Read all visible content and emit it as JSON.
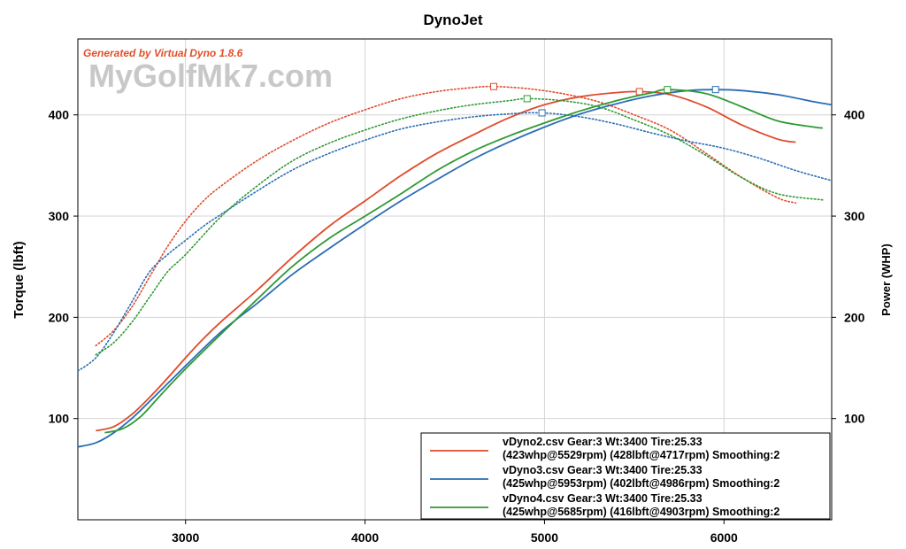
{
  "chart_data": {
    "type": "line",
    "title": "DynoJet",
    "generator_text": "Generated by Virtual Dyno 1.8.6",
    "watermark": "MyGolfMk7.com",
    "xlabel": "",
    "ylabel_left": "Torque (lbft)",
    "ylabel_right": "Power (WHP)",
    "xlim": [
      2400,
      6600
    ],
    "ylim": [
      0,
      475
    ],
    "x_ticks": [
      3000,
      4000,
      5000,
      6000
    ],
    "y_ticks": [
      100,
      200,
      300,
      400
    ],
    "grid": true,
    "legend_position": "bottom-right",
    "series": [
      {
        "name": "vDyno2.csv Gear:3 Wt:3400 Tire:25.33",
        "detail": "(423whp@5529rpm)  (428lbft@4717rpm)  Smoothing:2",
        "color": "#e04a2a",
        "power": {
          "x": [
            2500,
            2600,
            2700,
            2800,
            2900,
            3000,
            3100,
            3200,
            3400,
            3600,
            3800,
            4000,
            4200,
            4400,
            4600,
            4800,
            5000,
            5200,
            5400,
            5529,
            5700,
            5900,
            6100,
            6300,
            6400
          ],
          "y": [
            88,
            92,
            104,
            121,
            140,
            160,
            179,
            196,
            227,
            260,
            290,
            315,
            340,
            362,
            380,
            397,
            410,
            418,
            422,
            423,
            420,
            408,
            390,
            376,
            373
          ],
          "peak": [
            5529,
            423
          ]
        },
        "torque": {
          "x": [
            2500,
            2600,
            2700,
            2800,
            2900,
            3000,
            3100,
            3200,
            3400,
            3600,
            3800,
            4000,
            4200,
            4400,
            4600,
            4717,
            4900,
            5100,
            5300,
            5500,
            5700,
            5900,
            6100,
            6300,
            6400
          ],
          "y": [
            172,
            187,
            210,
            240,
            270,
            295,
            315,
            330,
            355,
            375,
            392,
            405,
            416,
            423,
            427,
            428,
            426,
            421,
            413,
            400,
            385,
            362,
            338,
            318,
            313
          ],
          "peak": [
            4717,
            428
          ]
        }
      },
      {
        "name": "vDyno3.csv Gear:3 Wt:3400 Tire:25.33",
        "detail": "(425whp@5953rpm)  (402lbft@4986rpm)  Smoothing:2",
        "color": "#2a6db5",
        "power": {
          "x": [
            2400,
            2500,
            2600,
            2700,
            2800,
            3000,
            3200,
            3400,
            3600,
            3800,
            4000,
            4200,
            4400,
            4600,
            4800,
            5000,
            5200,
            5400,
            5600,
            5800,
            5953,
            6100,
            6300,
            6500,
            6600
          ],
          "y": [
            72,
            76,
            86,
            100,
            117,
            152,
            186,
            214,
            243,
            268,
            292,
            315,
            336,
            356,
            373,
            388,
            401,
            411,
            419,
            424,
            425,
            424,
            420,
            413,
            410
          ],
          "peak": [
            5953,
            425
          ]
        },
        "torque": {
          "x": [
            2400,
            2500,
            2600,
            2700,
            2800,
            2900,
            3000,
            3100,
            3200,
            3400,
            3600,
            3800,
            4000,
            4200,
            4400,
            4600,
            4800,
            4986,
            5200,
            5400,
            5600,
            5800,
            6000,
            6200,
            6400,
            6600
          ],
          "y": [
            147,
            160,
            185,
            215,
            245,
            262,
            276,
            290,
            302,
            325,
            346,
            362,
            375,
            386,
            393,
            398,
            401,
            402,
            398,
            391,
            382,
            374,
            367,
            357,
            345,
            335
          ],
          "peak": [
            4986,
            402
          ]
        }
      },
      {
        "name": "vDyno4.csv Gear:3 Wt:3400 Tire:25.33",
        "detail": "(425whp@5685rpm)  (416lbft@4903rpm)  Smoothing:2",
        "color": "#2e9a33",
        "power": {
          "x": [
            2550,
            2650,
            2750,
            2850,
            2950,
            3050,
            3200,
            3400,
            3600,
            3800,
            4000,
            4200,
            4400,
            4600,
            4800,
            5000,
            5200,
            5400,
            5600,
            5685,
            5900,
            6100,
            6300,
            6500,
            6550
          ],
          "y": [
            86,
            90,
            102,
            121,
            140,
            158,
            184,
            218,
            251,
            278,
            300,
            322,
            345,
            364,
            379,
            392,
            404,
            414,
            422,
            425,
            421,
            408,
            394,
            388,
            387
          ],
          "peak": [
            5685,
            425
          ]
        },
        "torque": {
          "x": [
            2500,
            2600,
            2700,
            2800,
            2900,
            3000,
            3200,
            3400,
            3600,
            3800,
            4000,
            4200,
            4400,
            4600,
            4800,
            4903,
            5100,
            5300,
            5500,
            5700,
            5900,
            6100,
            6300,
            6550
          ],
          "y": [
            163,
            175,
            195,
            220,
            245,
            262,
            300,
            330,
            355,
            372,
            385,
            396,
            404,
            410,
            414,
            416,
            414,
            408,
            395,
            380,
            360,
            338,
            322,
            316
          ],
          "peak": [
            4903,
            416
          ]
        }
      }
    ]
  }
}
